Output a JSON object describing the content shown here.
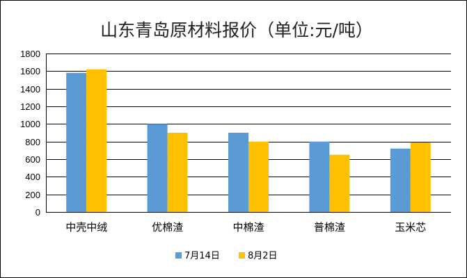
{
  "chart_data": {
    "type": "bar",
    "title": "山东青岛原材料报价（单位:元/吨）",
    "xlabel": "",
    "ylabel": "",
    "categories": [
      "中壳中绒",
      "优棉渣",
      "中棉渣",
      "普棉渣",
      "玉米芯"
    ],
    "series": [
      {
        "name": "7月14日",
        "values": [
          1580,
          1000,
          900,
          800,
          720
        ],
        "color": "#5B9BD5"
      },
      {
        "name": "8月2日",
        "values": [
          1620,
          900,
          800,
          650,
          790
        ],
        "color": "#FFC000"
      }
    ],
    "ylim": [
      0,
      1800
    ],
    "yticks": [
      "0",
      "200",
      "400",
      "600",
      "800",
      "1000",
      "1200",
      "1400",
      "1600",
      "1800"
    ],
    "grid": true,
    "legend": "bottom"
  }
}
